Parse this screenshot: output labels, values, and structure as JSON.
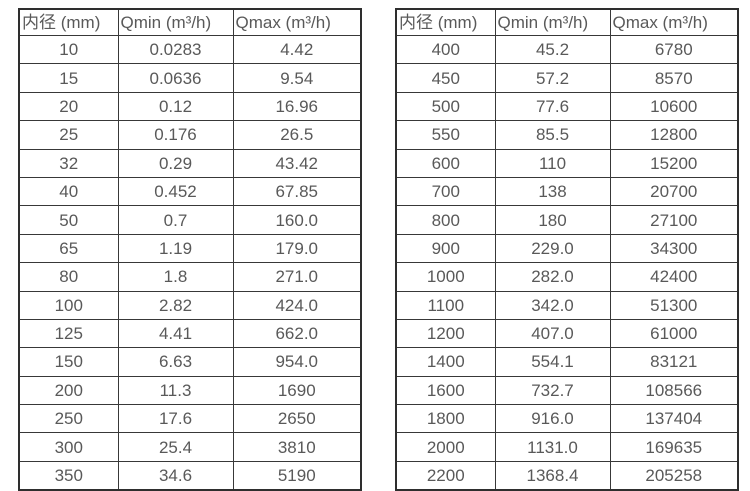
{
  "tables": [
    {
      "name": "flow-range-table-small-diameters",
      "headers": [
        "内径 (mm)",
        "Qmin (m³/h)",
        "Qmax (m³/h)"
      ],
      "rows": [
        [
          "10",
          "0.0283",
          "4.42"
        ],
        [
          "15",
          "0.0636",
          "9.54"
        ],
        [
          "20",
          "0.12",
          "16.96"
        ],
        [
          "25",
          "0.176",
          "26.5"
        ],
        [
          "32",
          "0.29",
          "43.42"
        ],
        [
          "40",
          "0.452",
          "67.85"
        ],
        [
          "50",
          "0.7",
          "160.0"
        ],
        [
          "65",
          "1.19",
          "179.0"
        ],
        [
          "80",
          "1.8",
          "271.0"
        ],
        [
          "100",
          "2.82",
          "424.0"
        ],
        [
          "125",
          "4.41",
          "662.0"
        ],
        [
          "150",
          "6.63",
          "954.0"
        ],
        [
          "200",
          "11.3",
          "1690"
        ],
        [
          "250",
          "17.6",
          "2650"
        ],
        [
          "300",
          "25.4",
          "3810"
        ],
        [
          "350",
          "34.6",
          "5190"
        ]
      ]
    },
    {
      "name": "flow-range-table-large-diameters",
      "headers": [
        "内径 (mm)",
        "Qmin (m³/h)",
        "Qmax (m³/h)"
      ],
      "rows": [
        [
          "400",
          "45.2",
          "6780"
        ],
        [
          "450",
          "57.2",
          "8570"
        ],
        [
          "500",
          "77.6",
          "10600"
        ],
        [
          "550",
          "85.5",
          "12800"
        ],
        [
          "600",
          "110",
          "15200"
        ],
        [
          "700",
          "138",
          "20700"
        ],
        [
          "800",
          "180",
          "27100"
        ],
        [
          "900",
          "229.0",
          "34300"
        ],
        [
          "1000",
          "282.0",
          "42400"
        ],
        [
          "1100",
          "342.0",
          "51300"
        ],
        [
          "1200",
          "407.0",
          "61000"
        ],
        [
          "1400",
          "554.1",
          "83121"
        ],
        [
          "1600",
          "732.7",
          "108566"
        ],
        [
          "1800",
          "916.0",
          "137404"
        ],
        [
          "2000",
          "1131.0",
          "169635"
        ],
        [
          "2200",
          "1368.4",
          "205258"
        ]
      ]
    }
  ],
  "colors": {
    "border_outer": "#2e2e2e",
    "border_inner": "#383838",
    "text": "#595959",
    "background": "#ffffff"
  }
}
